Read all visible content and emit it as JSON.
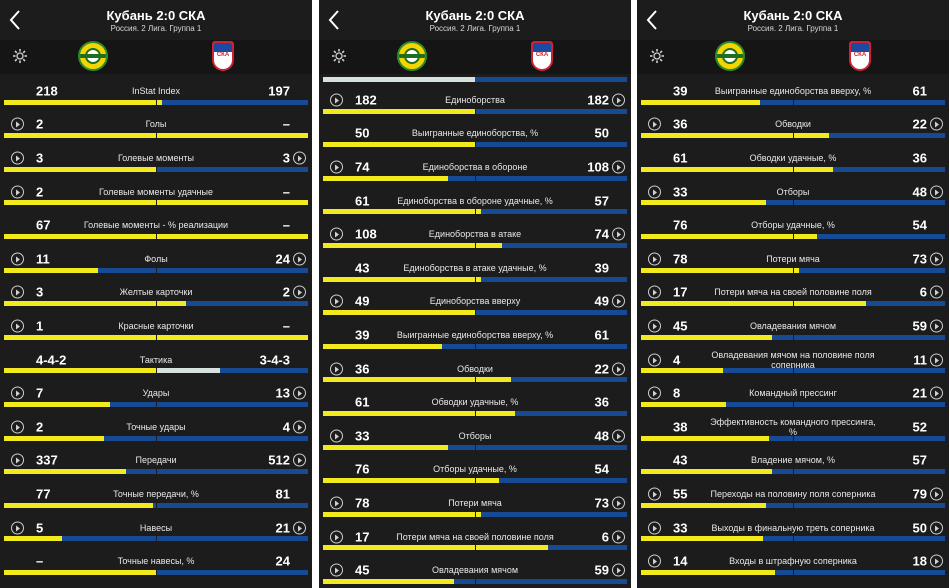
{
  "match": {
    "title": "Кубань 2:0 СКА",
    "subtitle": "Россия. 2 Лига. Группа 1",
    "home_team": "Кубань",
    "away_team": "СКА",
    "away_logo_text": "СКА"
  },
  "colors": {
    "home": "#f2ea1c",
    "away": "#164a92",
    "neutral": "#d8e2dc",
    "background": "#1c1c1c"
  },
  "panels": [
    {
      "rows": [
        {
          "label": "InStat Index",
          "home": "218",
          "away": "197",
          "home_share": 0.52,
          "away_share": 0.48,
          "play_left": false,
          "play_right": false
        },
        {
          "label": "Голы",
          "home": "2",
          "away": "–",
          "home_share": 1.0,
          "away_share": 0.0,
          "play_left": true,
          "play_right": false
        },
        {
          "label": "Голевые моменты",
          "home": "3",
          "away": "3",
          "home_share": 0.5,
          "away_share": 0.5,
          "play_left": true,
          "play_right": true
        },
        {
          "label": "Голевые моменты удачные",
          "home": "2",
          "away": "–",
          "home_share": 1.0,
          "away_share": 0.0,
          "play_left": true,
          "play_right": false
        },
        {
          "label": "Голевые моменты - % реализации",
          "home": "67",
          "away": "–",
          "home_share": 1.0,
          "away_share": 0.0,
          "play_left": false,
          "play_right": false
        },
        {
          "label": "Фолы",
          "home": "11",
          "away": "24",
          "home_share": 0.31,
          "away_share": 0.69,
          "play_left": true,
          "play_right": true
        },
        {
          "label": "Желтые карточки",
          "home": "3",
          "away": "2",
          "home_share": 0.6,
          "away_share": 0.4,
          "play_left": true,
          "play_right": true
        },
        {
          "label": "Красные карточки",
          "home": "1",
          "away": "–",
          "home_share": 1.0,
          "away_share": 0.0,
          "play_left": true,
          "play_right": false
        },
        {
          "label": "Тактика",
          "home": "4-4-2",
          "away": "3-4-3",
          "home_share": 0.5,
          "away_share": 0.29,
          "play_left": false,
          "play_right": false
        },
        {
          "label": "Удары",
          "home": "7",
          "away": "13",
          "home_share": 0.35,
          "away_share": 0.65,
          "play_left": true,
          "play_right": true
        },
        {
          "label": "Точные удары",
          "home": "2",
          "away": "4",
          "home_share": 0.33,
          "away_share": 0.67,
          "play_left": true,
          "play_right": true
        },
        {
          "label": "Передачи",
          "home": "337",
          "away": "512",
          "home_share": 0.4,
          "away_share": 0.6,
          "play_left": true,
          "play_right": true
        },
        {
          "label": "Точные передачи, %",
          "home": "77",
          "away": "81",
          "home_share": 0.49,
          "away_share": 0.51,
          "play_left": false,
          "play_right": false
        },
        {
          "label": "Навесы",
          "home": "5",
          "away": "21",
          "home_share": 0.19,
          "away_share": 0.81,
          "play_left": true,
          "play_right": true
        },
        {
          "label": "Точные навесы, %",
          "home": "–",
          "away": "24",
          "home_share": 0.5,
          "away_share": 0.5,
          "play_left": false,
          "play_right": false
        }
      ]
    },
    {
      "rows": [
        {
          "label": "Единоборства",
          "home": "182",
          "away": "182",
          "home_share": 0.5,
          "away_share": 0.5,
          "play_left": true,
          "play_right": true
        },
        {
          "label": "Выигранные единоборства, %",
          "home": "50",
          "away": "50",
          "home_share": 0.5,
          "away_share": 0.5,
          "play_left": false,
          "play_right": false
        },
        {
          "label": "Единоборства в обороне",
          "home": "74",
          "away": "108",
          "home_share": 0.41,
          "away_share": 0.59,
          "play_left": true,
          "play_right": true
        },
        {
          "label": "Единоборства в обороне удачные, %",
          "home": "61",
          "away": "57",
          "home_share": 0.52,
          "away_share": 0.48,
          "play_left": false,
          "play_right": false
        },
        {
          "label": "Единоборства в атаке",
          "home": "108",
          "away": "74",
          "home_share": 0.59,
          "away_share": 0.41,
          "play_left": true,
          "play_right": true
        },
        {
          "label": "Единоборства в атаке удачные, %",
          "home": "43",
          "away": "39",
          "home_share": 0.52,
          "away_share": 0.48,
          "play_left": false,
          "play_right": false
        },
        {
          "label": "Единоборства вверху",
          "home": "49",
          "away": "49",
          "home_share": 0.5,
          "away_share": 0.5,
          "play_left": true,
          "play_right": true
        },
        {
          "label": "Выигранные единоборства вверху, %",
          "home": "39",
          "away": "61",
          "home_share": 0.39,
          "away_share": 0.61,
          "play_left": false,
          "play_right": false
        },
        {
          "label": "Обводки",
          "home": "36",
          "away": "22",
          "home_share": 0.62,
          "away_share": 0.38,
          "play_left": true,
          "play_right": true
        },
        {
          "label": "Обводки удачные, %",
          "home": "61",
          "away": "36",
          "home_share": 0.63,
          "away_share": 0.37,
          "play_left": false,
          "play_right": false
        },
        {
          "label": "Отборы",
          "home": "33",
          "away": "48",
          "home_share": 0.41,
          "away_share": 0.59,
          "play_left": true,
          "play_right": true
        },
        {
          "label": "Отборы удачные, %",
          "home": "76",
          "away": "54",
          "home_share": 0.58,
          "away_share": 0.42,
          "play_left": false,
          "play_right": false
        },
        {
          "label": "Потери мяча",
          "home": "78",
          "away": "73",
          "home_share": 0.52,
          "away_share": 0.48,
          "play_left": true,
          "play_right": true
        },
        {
          "label": "Потери мяча на своей половине поля",
          "home": "17",
          "away": "6",
          "home_share": 0.74,
          "away_share": 0.26,
          "play_left": true,
          "play_right": true
        },
        {
          "label": "Овладевания мячом",
          "home": "45",
          "away": "59",
          "home_share": 0.43,
          "away_share": 0.57,
          "play_left": true,
          "play_right": true
        }
      ]
    },
    {
      "rows": [
        {
          "label": "Выигранные единоборства вверху, %",
          "home": "39",
          "away": "61",
          "home_share": 0.39,
          "away_share": 0.61,
          "play_left": false,
          "play_right": false
        },
        {
          "label": "Обводки",
          "home": "36",
          "away": "22",
          "home_share": 0.62,
          "away_share": 0.38,
          "play_left": true,
          "play_right": true
        },
        {
          "label": "Обводки удачные, %",
          "home": "61",
          "away": "36",
          "home_share": 0.63,
          "away_share": 0.37,
          "play_left": false,
          "play_right": false
        },
        {
          "label": "Отборы",
          "home": "33",
          "away": "48",
          "home_share": 0.41,
          "away_share": 0.59,
          "play_left": true,
          "play_right": true
        },
        {
          "label": "Отборы удачные, %",
          "home": "76",
          "away": "54",
          "home_share": 0.58,
          "away_share": 0.42,
          "play_left": false,
          "play_right": false
        },
        {
          "label": "Потери мяча",
          "home": "78",
          "away": "73",
          "home_share": 0.52,
          "away_share": 0.48,
          "play_left": true,
          "play_right": true
        },
        {
          "label": "Потери мяча на своей половине поля",
          "home": "17",
          "away": "6",
          "home_share": 0.74,
          "away_share": 0.26,
          "play_left": true,
          "play_right": true
        },
        {
          "label": "Овладевания мячом",
          "home": "45",
          "away": "59",
          "home_share": 0.43,
          "away_share": 0.57,
          "play_left": true,
          "play_right": true
        },
        {
          "label": "Овладевания мячом на половине поля соперника",
          "home": "4",
          "away": "11",
          "home_share": 0.27,
          "away_share": 0.73,
          "play_left": true,
          "play_right": true
        },
        {
          "label": "Командный прессинг",
          "home": "8",
          "away": "21",
          "home_share": 0.28,
          "away_share": 0.72,
          "play_left": true,
          "play_right": true
        },
        {
          "label": "Эффективность командного прессинга, %",
          "home": "38",
          "away": "52",
          "home_share": 0.42,
          "away_share": 0.58,
          "play_left": false,
          "play_right": false
        },
        {
          "label": "Владение мячом, %",
          "home": "43",
          "away": "57",
          "home_share": 0.43,
          "away_share": 0.57,
          "play_left": false,
          "play_right": false
        },
        {
          "label": "Переходы на половину поля соперника",
          "home": "55",
          "away": "79",
          "home_share": 0.41,
          "away_share": 0.59,
          "play_left": true,
          "play_right": true
        },
        {
          "label": "Выходы в финальную треть соперника",
          "home": "33",
          "away": "50",
          "home_share": 0.4,
          "away_share": 0.6,
          "play_left": true,
          "play_right": true
        },
        {
          "label": "Входы в штрафную соперника",
          "home": "14",
          "away": "18",
          "home_share": 0.44,
          "away_share": 0.56,
          "play_left": true,
          "play_right": true
        }
      ]
    }
  ]
}
